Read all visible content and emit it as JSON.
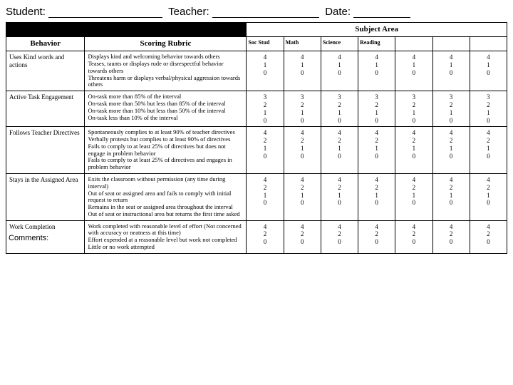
{
  "header": {
    "student_label": "Student:",
    "teacher_label": "Teacher:",
    "date_label": "Date:"
  },
  "subject_area_label": "Subject Area",
  "columns": {
    "behavior": "Behavior",
    "rubric": "Scoring Rubric",
    "subjects": [
      "Soc Stud",
      "Math",
      "Science",
      "Reading",
      "",
      "",
      ""
    ]
  },
  "rows": [
    {
      "behavior": "Uses Kind words and actions",
      "rubric": "Displays kind and welcoming behavior towards others\nTeases, taunts or displays rude or disrespectful behavior towards others\nThreatens harm or displays verbal/physical aggression towards others",
      "scores": "4\n1\n0"
    },
    {
      "behavior": "Active Task Engagement",
      "rubric": "On-task more than 85% of the interval\nOn-task more than 50% but less than 85% of the interval\nOn-task more than 10% but less than 50% of the interval\nOn-task less than 10% of the interval",
      "scores": "3\n2\n1\n0"
    },
    {
      "behavior": "Follows Teacher Directives",
      "rubric": "Spontaneously complies to at least 90% of teacher directives\nVerbally protests but complies to at least 90% of directives\nFails to comply to at least 25% of directives but does not engage in problem behavior\nFails to comply to at least 25% of directives and engages in problem behavior",
      "scores": "4\n2\n1\n0"
    },
    {
      "behavior": "Stays in the Assigned Area",
      "rubric": "Exits the classroom without permission (any time during interval)\nOut of seat or assigned area and fails to comply with initial request to return\nRemains in the seat or assigned area throughout the interval\nOut of seat or instructional area but returns the first time asked",
      "scores": "4\n2\n1\n0"
    },
    {
      "behavior": "Work Completion",
      "rubric": "Work completed with reasonable level of effort (Not concerned with accuracy or neatness at this time)\nEffort expended at a reasonable level but work not completed\nLittle or no work attempted",
      "scores": "4\n2\n0"
    }
  ],
  "comments_label": "Comments:"
}
